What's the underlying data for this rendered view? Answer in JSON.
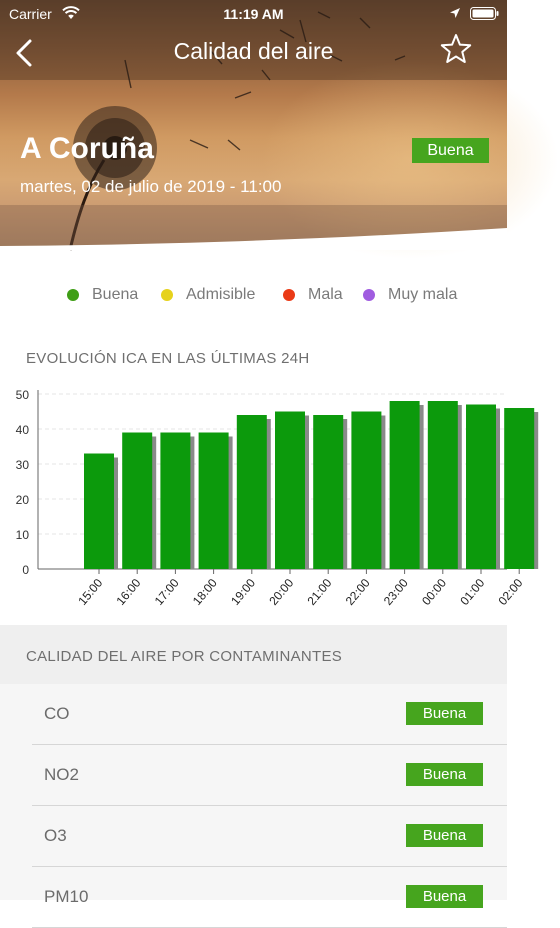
{
  "status_bar": {
    "carrier": "Carrier",
    "time": "11:19 AM"
  },
  "nav": {
    "title": "Calidad del aire"
  },
  "location": {
    "city": "A Coruña",
    "datetime": "martes, 02 de julio  de 2019 - 11:00",
    "badge": "Buena"
  },
  "legend": [
    {
      "label": "Buena",
      "color": "#3f9e16"
    },
    {
      "label": "Admisible",
      "color": "#e6d21c"
    },
    {
      "label": "Mala",
      "color": "#ea3a16"
    },
    {
      "label": "Muy mala",
      "color": "#a05ce0"
    }
  ],
  "chart_section": {
    "title": "EVOLUCIÓN ICA EN LAS ÚLTIMAS 24H"
  },
  "chart_data": {
    "type": "bar",
    "title": "",
    "xlabel": "",
    "ylabel": "",
    "categories": [
      "15:00",
      "16:00",
      "17:00",
      "18:00",
      "19:00",
      "20:00",
      "21:00",
      "22:00",
      "23:00",
      "00:00",
      "01:00",
      "02:00"
    ],
    "values": [
      33,
      39,
      39,
      39,
      44,
      45,
      44,
      45,
      48,
      48,
      47,
      46
    ],
    "ylim": [
      0,
      50
    ],
    "yticks": [
      0,
      10,
      20,
      30,
      40,
      50
    ],
    "grid": true,
    "bar_color": "#0c9a0c",
    "shadow_color": "#8a8a8a"
  },
  "contaminants_section": {
    "title": "CALIDAD DEL AIRE POR CONTAMINANTES",
    "items": [
      {
        "name": "CO",
        "status": "Buena"
      },
      {
        "name": "NO2",
        "status": "Buena"
      },
      {
        "name": "O3",
        "status": "Buena"
      },
      {
        "name": "PM10",
        "status": "Buena"
      }
    ]
  },
  "colors": {
    "good": "#46a51e"
  }
}
